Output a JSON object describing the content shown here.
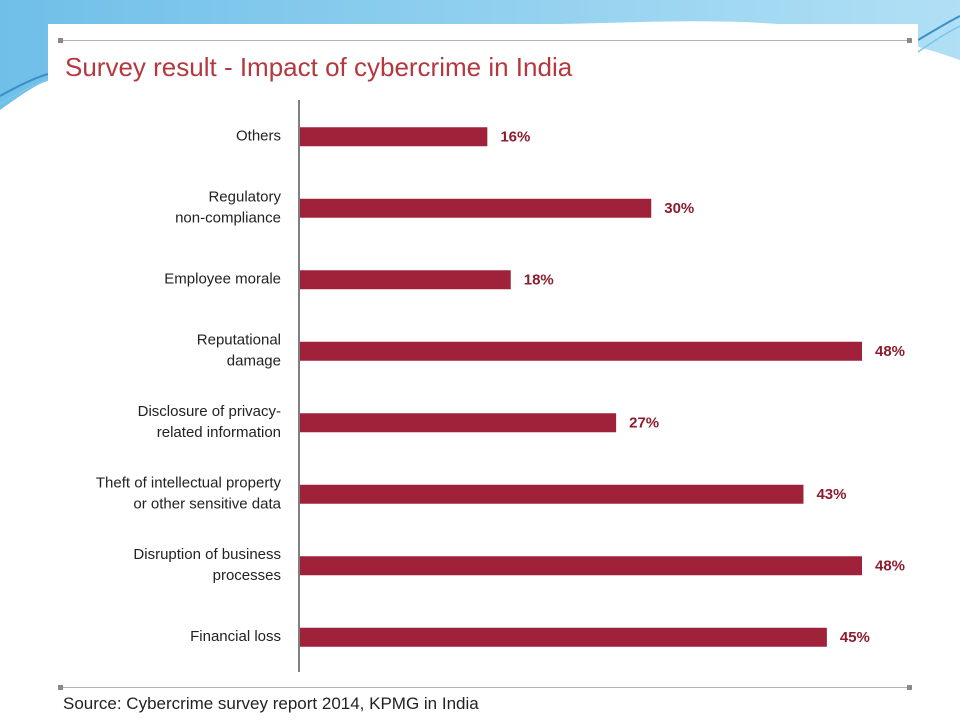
{
  "page": {
    "title": "Survey result - Impact of cybercrime in India",
    "source": "Source: Cybercrime survey report 2014, KPMG in India"
  },
  "colors": {
    "bar": "#a0213a",
    "value_label": "#8c1d2e",
    "title": "#b5373f",
    "axis": "#555555"
  },
  "chart_data": {
    "type": "bar",
    "orientation": "horizontal",
    "title": "Survey result - Impact of cybercrime in India",
    "xlabel": "",
    "ylabel": "",
    "xlim": [
      0,
      50
    ],
    "grid": false,
    "legend": "none",
    "categories": [
      [
        "Others"
      ],
      [
        "Regulatory",
        "non-compliance"
      ],
      [
        "Employee morale"
      ],
      [
        "Reputational",
        "damage"
      ],
      [
        "Disclosure of privacy-",
        "related information"
      ],
      [
        "Theft of intellectual property",
        "or other sensitive data"
      ],
      [
        "Disruption of business",
        "processes"
      ],
      [
        "Financial loss"
      ]
    ],
    "values": [
      16,
      30,
      18,
      48,
      27,
      43,
      48,
      45
    ],
    "value_labels": [
      "16%",
      "30%",
      "18%",
      "48%",
      "27%",
      "43%",
      "48%",
      "45%"
    ]
  }
}
